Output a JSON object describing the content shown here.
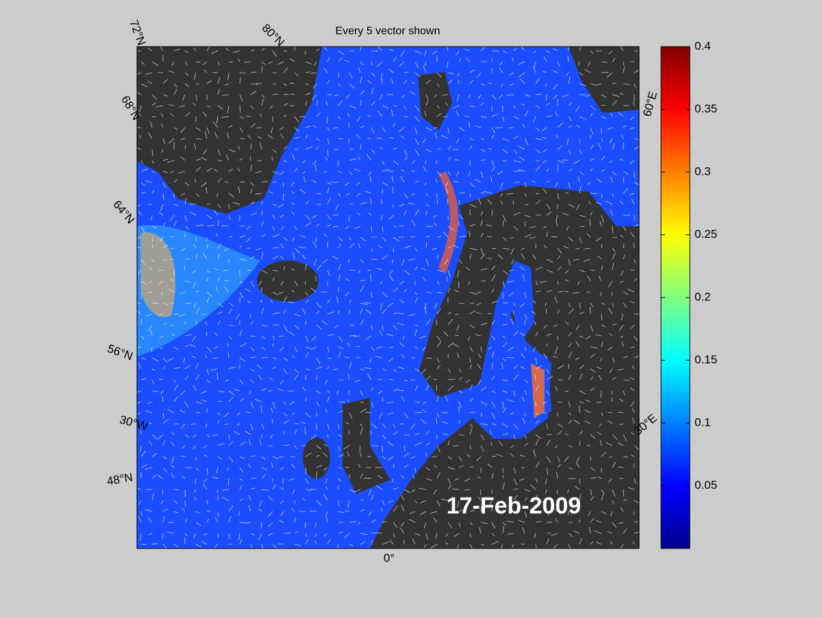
{
  "title": "Every 5 vector shown",
  "date": "17-Feb-2009",
  "graticule_labels": [
    "72°N",
    "80°N",
    "68°N",
    "64°N",
    "56°N",
    "30°W",
    "48°N",
    "0°",
    "60°E",
    "30°E"
  ],
  "colorbar": {
    "clim": [
      0,
      0.4
    ],
    "ticks": [
      0.05,
      0.1,
      0.15,
      0.2,
      0.25,
      0.3,
      0.35,
      0.4
    ]
  }
}
